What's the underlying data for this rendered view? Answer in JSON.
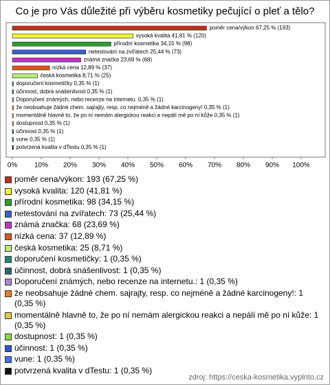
{
  "chart_data": {
    "type": "bar",
    "orientation": "horizontal",
    "title": "Co je pro Vás důležité při výběru kosmetiky pečující o pleť a tělo?",
    "categories": [
      "poměr cena/výkon",
      "vysoká kvalita",
      "přírodní kosmetika",
      "netestování na zvířatech",
      "známá značka",
      "nízká cena",
      "česká kosmetika",
      "doporučení kosmetičky",
      "účinnost, dobrá snášenlivost",
      "Doporučení známých, nebo recenze na internetu.",
      "že neobsahuje žádné chem. sajrajty, resp. co nejméně a žádné karcinogeny!",
      "momentálně hlavně to, že po ní nemám alergickou reakci a nepálí mě po ní kůže",
      "dostupnost",
      "účinnost",
      "vune",
      "potvrzená kvalita v dTestu"
    ],
    "values": [
      67.25,
      41.81,
      34.15,
      25.44,
      23.69,
      12.89,
      8.71,
      0.35,
      0.35,
      0.35,
      0.35,
      0.35,
      0.35,
      0.35,
      0.35,
      0.35
    ],
    "value_labels": [
      "67,25 % (193)",
      "41,81 % (120)",
      "34,15 % (98)",
      "25,44 % (73)",
      "23,69 % (68)",
      "12,89 % (37)",
      "8,71 % (25)",
      "0,35 % (1)",
      "0,35 % (1)",
      "0,35 % (1)",
      "0,35 % (1)",
      "0,35 % (1)",
      "0,35 % (1)",
      "0,35 % (1)",
      "0,35 % (1)",
      "0,35 % (1)"
    ],
    "colors": [
      "#c0301c",
      "#f2f23a",
      "#2f9e2f",
      "#3a5fcd",
      "#c431c4",
      "#e2551d",
      "#b5ec7a",
      "#208a72",
      "#2a6b6b",
      "#a98ad0",
      "#ee7a22",
      "#e8c648",
      "#8ad74a",
      "#2f54d8",
      "#4a6cf0",
      "#111111"
    ],
    "legend": [
      "poměr cena/výkon: 193 (67,25 %)",
      "vysoká kvalita: 120 (41,81 %)",
      "přírodní kosmetika: 98 (34,15 %)",
      "netestování na zvířatech: 73 (25,44 %)",
      "známá značka: 68 (23,69 %)",
      "nízká cena: 37 (12,89 %)",
      "česká kosmetika: 25 (8,71 %)",
      "doporučení kosmetičky: 1 (0,35 %)",
      "účinnost, dobrá snášenlivost: 1 (0,35 %)",
      "Doporučení známých, nebo recenze na internetu.: 1 (0,35 %)",
      "že neobsahuje žádné chem. sajrajty, resp. co nejméně a žádné karcinogeny!: 1 (0,35 %)",
      "momentálně hlavně to, že po ní nemám alergickou reakci a nepálí mě po ní kůže: 1 (0,35 %)",
      "dostupnost: 1 (0,35 %)",
      "účinnost: 1 (0,35 %)",
      "vune: 1 (0,35 %)",
      "potvrzená kvalita v dTestu: 1 (0,35 %)"
    ],
    "xlim": [
      0,
      100
    ],
    "xticks": [
      {
        "value": 0,
        "label": "0%"
      },
      {
        "value": 10,
        "label": "10%"
      },
      {
        "value": 20,
        "label": "20%"
      },
      {
        "value": 30,
        "label": "30%"
      },
      {
        "value": 40,
        "label": "40%"
      },
      {
        "value": 50,
        "label": "50%"
      },
      {
        "value": 60,
        "label": "60%"
      },
      {
        "value": 70,
        "label": "70%"
      },
      {
        "value": 80,
        "label": "80%"
      },
      {
        "value": 90,
        "label": "90%"
      },
      {
        "value": 100,
        "label": "100%"
      }
    ],
    "grid": false,
    "source": "zdroj: https://ceska-kosmetika.vyplnto.cz"
  }
}
